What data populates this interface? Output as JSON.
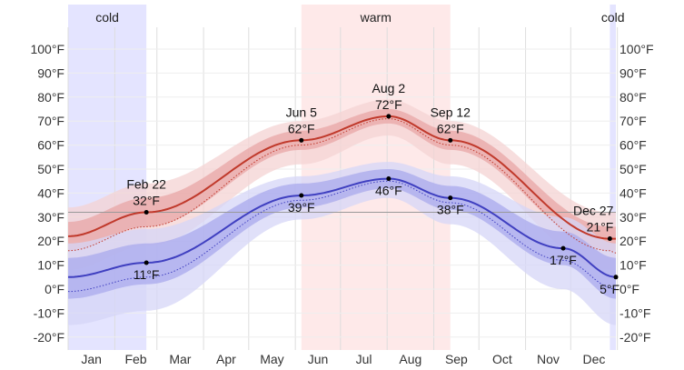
{
  "chart_data": {
    "type": "line",
    "title": "",
    "xlabel": "",
    "ylabel": "",
    "ylim": [
      -24,
      115
    ],
    "y_ticks": [
      "100°F",
      "90°F",
      "80°F",
      "70°F",
      "60°F",
      "50°F",
      "40°F",
      "30°F",
      "20°F",
      "10°F",
      "0°F",
      "-10°F",
      "-20°F"
    ],
    "y_tick_values": [
      100,
      90,
      80,
      70,
      60,
      50,
      40,
      30,
      20,
      10,
      0,
      -10,
      -20
    ],
    "months": [
      "Jan",
      "Feb",
      "Mar",
      "Apr",
      "May",
      "Jun",
      "Jul",
      "Aug",
      "Sep",
      "Oct",
      "Nov",
      "Dec"
    ],
    "freezing_line": 32,
    "seasons": [
      {
        "label": "cold",
        "start_day": 1,
        "end_day": 53,
        "color": "#d8d8ff"
      },
      {
        "label": "warm",
        "start_day": 156,
        "end_day": 255,
        "color": "#fde0e0"
      },
      {
        "label": "cold",
        "start_day": 361,
        "end_day": 365,
        "color": "#d8d8ff"
      }
    ],
    "colors": {
      "high_line": "#c0392b",
      "high_band_inner": "#e8a5a5",
      "high_band_outer": "#f4d3d3",
      "low_line": "#3f3fc0",
      "low_band_inner": "#a9a9ec",
      "low_band_outer": "#d6d6f7"
    },
    "series": [
      {
        "key": "high",
        "days": [
          1,
          53,
          156,
          214,
          255,
          361,
          365
        ],
        "values": [
          22,
          32,
          62,
          72,
          62,
          21,
          21
        ],
        "dotted": [
          16,
          26,
          60,
          71,
          60,
          16,
          15
        ],
        "band25": [
          -6,
          -6,
          -4,
          -3,
          -4,
          -5,
          -5
        ],
        "band75": [
          6,
          6,
          4,
          3,
          4,
          5,
          5
        ],
        "band10": [
          -14,
          -14,
          -10,
          -8,
          -10,
          -13,
          -13
        ],
        "band90": [
          12,
          12,
          8,
          7,
          8,
          11,
          11
        ]
      },
      {
        "key": "low",
        "days": [
          1,
          53,
          156,
          214,
          255,
          330,
          365
        ],
        "values": [
          5,
          11,
          39,
          46,
          38,
          17,
          5
        ],
        "dotted": [
          -1,
          5,
          37,
          45,
          36,
          12,
          0
        ],
        "band25": [
          -9,
          -9,
          -5,
          -4,
          -5,
          -7,
          -9
        ],
        "band75": [
          8,
          8,
          5,
          4,
          5,
          7,
          8
        ],
        "band10": [
          -20,
          -20,
          -10,
          -8,
          -11,
          -17,
          -20
        ],
        "band90": [
          14,
          14,
          8,
          7,
          9,
          13,
          14
        ]
      }
    ],
    "annotations": [
      {
        "day": 53,
        "value": 32,
        "lines": [
          "Feb 22",
          "32°F"
        ],
        "pos": "above"
      },
      {
        "day": 156,
        "value": 62,
        "lines": [
          "Jun 5",
          "62°F"
        ],
        "pos": "above"
      },
      {
        "day": 214,
        "value": 72,
        "lines": [
          "Aug 2",
          "72°F"
        ],
        "pos": "above"
      },
      {
        "day": 255,
        "value": 62,
        "lines": [
          "Sep 12",
          "62°F"
        ],
        "pos": "above"
      },
      {
        "day": 361,
        "value": 21,
        "lines": [
          "Dec 27",
          "21°F"
        ],
        "pos": "above"
      },
      {
        "day": 53,
        "value": 11,
        "lines": [
          "11°F"
        ],
        "pos": "below"
      },
      {
        "day": 156,
        "value": 39,
        "lines": [
          "39°F"
        ],
        "pos": "below"
      },
      {
        "day": 214,
        "value": 46,
        "lines": [
          "46°F"
        ],
        "pos": "below"
      },
      {
        "day": 255,
        "value": 38,
        "lines": [
          "38°F"
        ],
        "pos": "below"
      },
      {
        "day": 330,
        "value": 17,
        "lines": [
          "17°F"
        ],
        "pos": "below"
      },
      {
        "day": 365,
        "value": 5,
        "lines": [
          "5°F"
        ],
        "pos": "below"
      }
    ]
  }
}
